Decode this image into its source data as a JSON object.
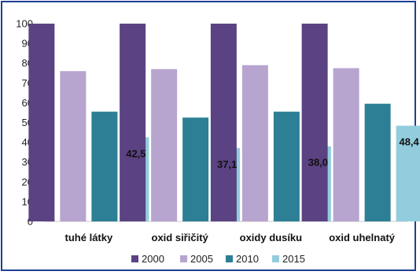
{
  "chart_data": {
    "type": "bar",
    "categories": [
      "tuhé látky",
      "oxid siřičitý",
      "oxidy dusíku",
      "oxid uhelnatý"
    ],
    "series": [
      {
        "name": "2000",
        "values": [
          100,
          100,
          100,
          100
        ],
        "color": "#5b4283"
      },
      {
        "name": "2005",
        "values": [
          76,
          77,
          79,
          77.5
        ],
        "color": "#b7a5cf"
      },
      {
        "name": "2010",
        "values": [
          55.5,
          52.5,
          55.5,
          59.5
        ],
        "color": "#2c7f94"
      },
      {
        "name": "2015",
        "values": [
          42.5,
          37.1,
          38.0,
          48.4
        ],
        "color": "#93cddd"
      }
    ],
    "data_labels": {
      "series": "2015",
      "texts": [
        "42,5",
        "37,1",
        "38,0",
        "48,4"
      ]
    },
    "ylim": [
      0,
      100
    ],
    "yticks": [
      "0",
      "10",
      "20",
      "30",
      "40",
      "50",
      "60",
      "70",
      "80",
      "90",
      "100"
    ],
    "title": "",
    "xlabel": "",
    "ylabel": "",
    "grid": false,
    "legend": "bottom-center"
  }
}
